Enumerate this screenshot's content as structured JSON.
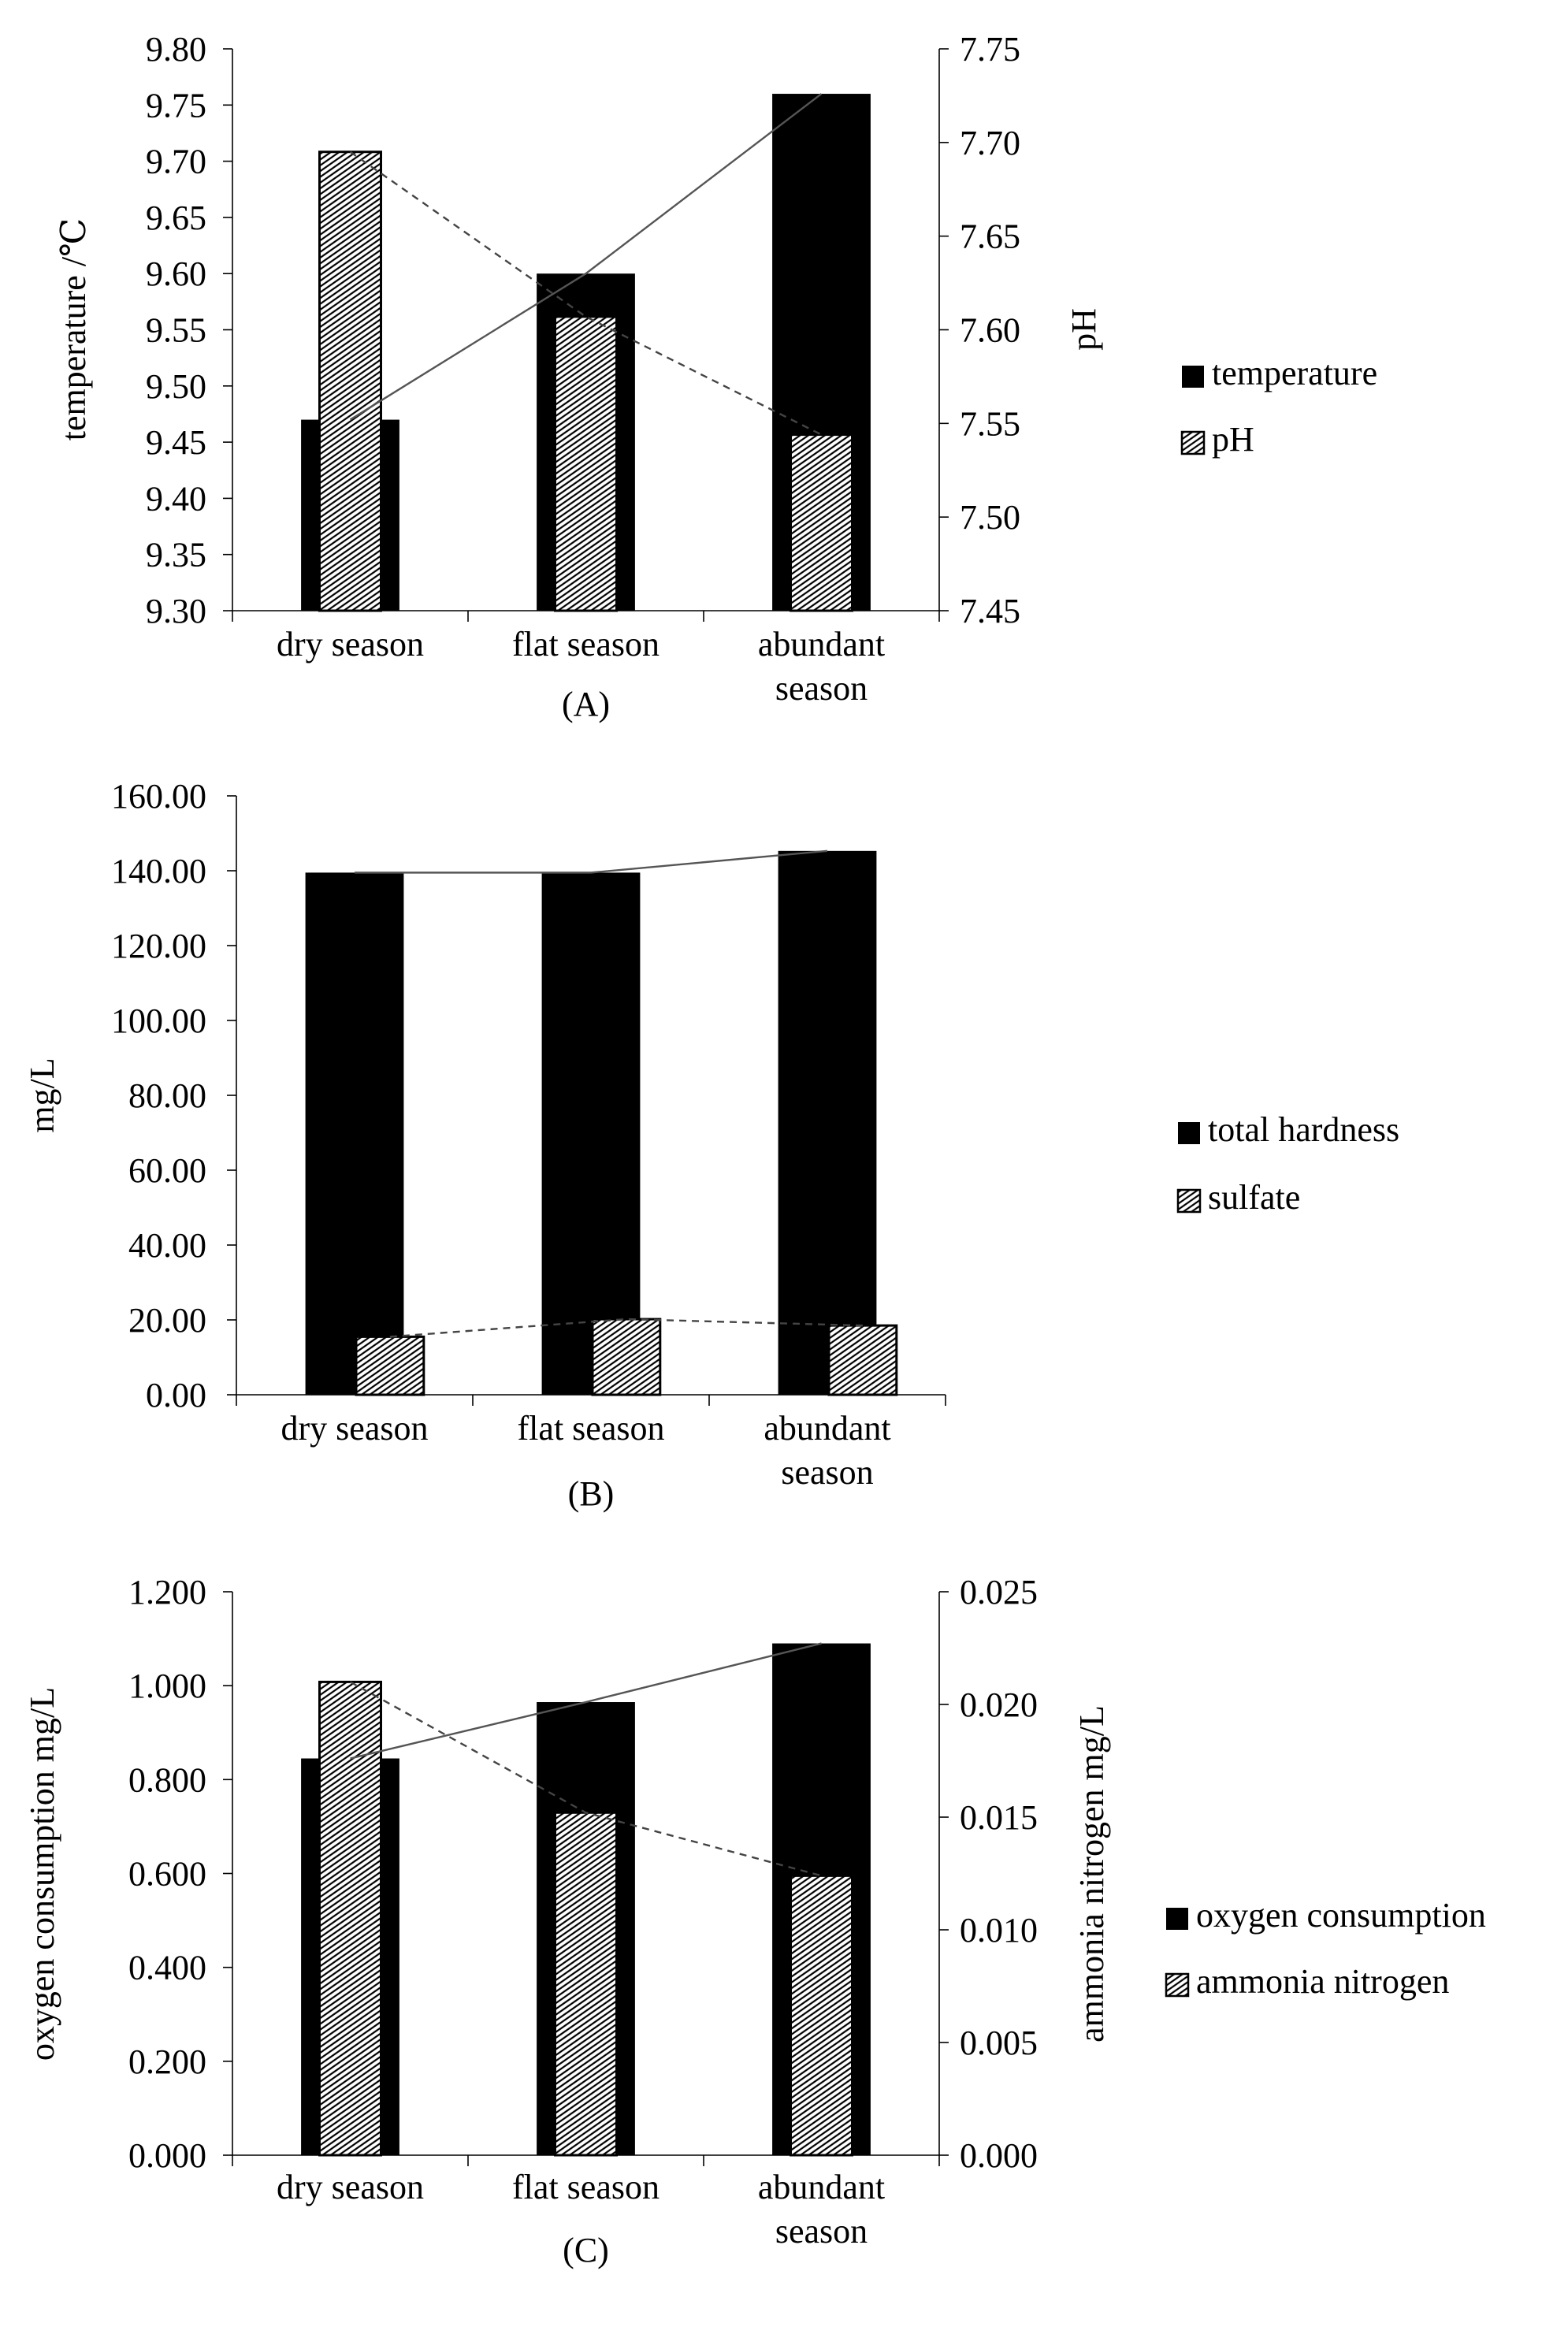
{
  "colors": {
    "ink": "#000000",
    "background": "#ffffff"
  },
  "chart_data": [
    {
      "type": "bar",
      "panel_label": "(A)",
      "categories": [
        "dry season",
        "flat season",
        "abundant season"
      ],
      "category_lines": [
        [
          "dry season"
        ],
        [
          "flat season"
        ],
        [
          "abundant",
          "season"
        ]
      ],
      "left_axis": {
        "label": "temperature /℃",
        "ylim": [
          9.3,
          9.8
        ],
        "step": 0.05,
        "decimals": 2
      },
      "right_axis": {
        "label": "pH",
        "ylim": [
          7.45,
          7.75
        ],
        "step": 0.05,
        "decimals": 2
      },
      "series": [
        {
          "name": "temperature",
          "axis": "left",
          "pattern": "solid",
          "trend_line": "solid",
          "values": [
            9.47,
            9.6,
            9.76
          ]
        },
        {
          "name": "pH",
          "axis": "right",
          "pattern": "hatch",
          "trend_line": "dashed",
          "values": [
            7.695,
            7.607,
            7.544
          ]
        }
      ],
      "grid": false,
      "legend_position": "right"
    },
    {
      "type": "bar",
      "panel_label": "(B)",
      "categories": [
        "dry season",
        "flat season",
        "abundant season"
      ],
      "category_lines": [
        [
          "dry season"
        ],
        [
          "flat season"
        ],
        [
          "abundant",
          "season"
        ]
      ],
      "left_axis": {
        "label": "mg/L",
        "ylim": [
          0,
          160
        ],
        "step": 20,
        "decimals": 2
      },
      "right_axis": null,
      "series": [
        {
          "name": "total hardness",
          "axis": "left",
          "pattern": "solid",
          "trend_line": "solid",
          "values": [
            139.5,
            139.5,
            145.3
          ]
        },
        {
          "name": "sulfate",
          "axis": "left",
          "pattern": "hatch",
          "trend_line": "dashed",
          "values": [
            15.5,
            20.2,
            18.5
          ]
        }
      ],
      "grid": false,
      "legend_position": "right"
    },
    {
      "type": "bar",
      "panel_label": "(C)",
      "categories": [
        "dry season",
        "flat season",
        "abundant season"
      ],
      "category_lines": [
        [
          "dry season"
        ],
        [
          "flat season"
        ],
        [
          "abundant",
          "season"
        ]
      ],
      "left_axis": {
        "label": "oxygen consumption mg/L",
        "ylim": [
          0,
          1.2
        ],
        "step": 0.2,
        "decimals": 3
      },
      "right_axis": {
        "label": "ammonia nitrogen mg/L",
        "ylim": [
          0,
          0.025
        ],
        "step": 0.005,
        "decimals": 3
      },
      "series": [
        {
          "name": "oxygen consumption",
          "axis": "left",
          "pattern": "solid",
          "trend_line": "solid",
          "values": [
            0.845,
            0.965,
            1.09
          ]
        },
        {
          "name": "ammonia nitrogen",
          "axis": "right",
          "pattern": "hatch",
          "trend_line": "dashed",
          "values": [
            0.021,
            0.0152,
            0.0124
          ]
        }
      ],
      "grid": false,
      "legend_position": "right"
    }
  ]
}
